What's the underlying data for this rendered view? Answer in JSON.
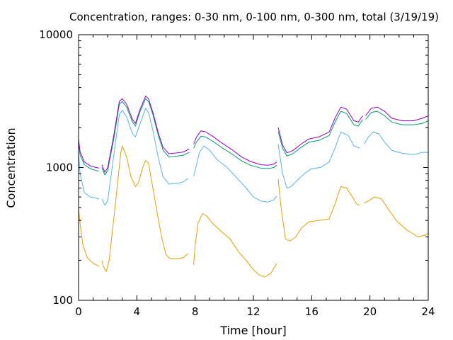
{
  "chart_data": {
    "type": "line",
    "title": "Concentration, ranges: 0-30 nm, 0-100 nm, 0-300 nm, total (3/19/19)",
    "xlabel": "Time [hour]",
    "ylabel": "Concentration",
    "xlim": [
      0,
      24
    ],
    "ylim": [
      100,
      10000
    ],
    "yscale": "log",
    "grid": false,
    "legend": "none",
    "x_ticks": [
      "0",
      "4",
      "8",
      "12",
      "16",
      "20",
      "24"
    ],
    "y_ticks": [
      "100",
      "1000",
      "10000"
    ],
    "x_tick_values": [
      0,
      4,
      8,
      12,
      16,
      20,
      24
    ],
    "y_tick_values": [
      100,
      1000,
      10000
    ],
    "series": [
      {
        "color": "#e69f00",
        "segments": [
          [
            [
              0,
              500
            ],
            [
              0.1,
              380
            ],
            [
              0.3,
              260
            ],
            [
              0.6,
              210
            ],
            [
              1.0,
              190
            ],
            [
              1.4,
              180
            ]
          ],
          [
            [
              1.6,
              200
            ],
            [
              1.7,
              180
            ],
            [
              1.9,
              165
            ],
            [
              2.1,
              200
            ],
            [
              2.5,
              500
            ],
            [
              2.9,
              1300
            ],
            [
              3.0,
              1450
            ],
            [
              3.3,
              1200
            ],
            [
              3.6,
              850
            ],
            [
              3.9,
              720
            ],
            [
              4.1,
              760
            ],
            [
              4.4,
              1000
            ],
            [
              4.6,
              1130
            ],
            [
              4.8,
              1080
            ],
            [
              5.1,
              700
            ],
            [
              5.4,
              450
            ],
            [
              5.7,
              300
            ],
            [
              6.0,
              220
            ],
            [
              6.3,
              205
            ],
            [
              6.8,
              205
            ],
            [
              7.2,
              210
            ],
            [
              7.5,
              225
            ]
          ],
          [
            [
              7.9,
              185
            ],
            [
              8.0,
              260
            ],
            [
              8.2,
              380
            ],
            [
              8.5,
              450
            ],
            [
              8.8,
              430
            ],
            [
              9.2,
              380
            ],
            [
              9.8,
              330
            ],
            [
              10.4,
              290
            ],
            [
              11.0,
              230
            ],
            [
              11.5,
              200
            ],
            [
              12.0,
              170
            ],
            [
              12.4,
              155
            ],
            [
              12.8,
              150
            ],
            [
              13.2,
              160
            ],
            [
              13.6,
              190
            ]
          ],
          [
            [
              13.7,
              820
            ],
            [
              13.9,
              500
            ],
            [
              14.2,
              290
            ],
            [
              14.5,
              280
            ],
            [
              14.9,
              300
            ],
            [
              15.3,
              350
            ],
            [
              15.8,
              390
            ],
            [
              16.5,
              400
            ],
            [
              17.2,
              410
            ],
            [
              17.6,
              530
            ],
            [
              18.0,
              720
            ],
            [
              18.4,
              700
            ],
            [
              18.8,
              600
            ],
            [
              19.1,
              530
            ],
            [
              19.3,
              520
            ]
          ],
          [
            [
              19.6,
              540
            ],
            [
              19.9,
              560
            ],
            [
              20.3,
              600
            ],
            [
              20.8,
              580
            ],
            [
              21.3,
              480
            ],
            [
              21.8,
              400
            ],
            [
              22.5,
              340
            ],
            [
              23.3,
              300
            ],
            [
              23.8,
              310
            ],
            [
              24.0,
              320
            ]
          ]
        ]
      },
      {
        "color": "#56b4e9",
        "segments": [
          [
            [
              0,
              1300
            ],
            [
              0.1,
              900
            ],
            [
              0.4,
              650
            ],
            [
              0.8,
              600
            ],
            [
              1.2,
              590
            ],
            [
              1.4,
              580
            ]
          ],
          [
            [
              1.6,
              580
            ],
            [
              1.8,
              520
            ],
            [
              2.0,
              560
            ],
            [
              2.4,
              1200
            ],
            [
              2.8,
              2500
            ],
            [
              3.0,
              2700
            ],
            [
              3.3,
              2400
            ],
            [
              3.7,
              1800
            ],
            [
              3.9,
              1700
            ],
            [
              4.2,
              2100
            ],
            [
              4.6,
              2800
            ],
            [
              4.8,
              2600
            ],
            [
              5.1,
              1900
            ],
            [
              5.5,
              1150
            ],
            [
              5.8,
              850
            ],
            [
              6.2,
              750
            ],
            [
              6.8,
              760
            ],
            [
              7.2,
              780
            ],
            [
              7.5,
              830
            ]
          ],
          [
            [
              7.9,
              860
            ],
            [
              8.1,
              1050
            ],
            [
              8.3,
              1300
            ],
            [
              8.6,
              1450
            ],
            [
              9.0,
              1350
            ],
            [
              9.5,
              1150
            ],
            [
              10.2,
              1000
            ],
            [
              10.8,
              850
            ],
            [
              11.5,
              700
            ],
            [
              12.0,
              600
            ],
            [
              12.5,
              560
            ],
            [
              13.0,
              550
            ],
            [
              13.4,
              570
            ],
            [
              13.6,
              610
            ]
          ],
          [
            [
              13.7,
              1500
            ],
            [
              14.0,
              900
            ],
            [
              14.3,
              700
            ],
            [
              14.6,
              720
            ],
            [
              15.0,
              800
            ],
            [
              15.5,
              900
            ],
            [
              16.0,
              980
            ],
            [
              16.6,
              1000
            ],
            [
              17.2,
              1100
            ],
            [
              17.6,
              1400
            ],
            [
              18.0,
              1850
            ],
            [
              18.5,
              1750
            ],
            [
              18.9,
              1450
            ],
            [
              19.3,
              1400
            ]
          ],
          [
            [
              19.6,
              1500
            ],
            [
              19.9,
              1700
            ],
            [
              20.2,
              1850
            ],
            [
              20.6,
              1800
            ],
            [
              21.0,
              1550
            ],
            [
              21.5,
              1350
            ],
            [
              22.2,
              1280
            ],
            [
              23.0,
              1250
            ],
            [
              23.6,
              1300
            ],
            [
              24.0,
              1300
            ]
          ]
        ]
      },
      {
        "color": "#009e73",
        "segments": [
          [
            [
              0,
              1550
            ],
            [
              0.1,
              1250
            ],
            [
              0.4,
              1050
            ],
            [
              0.8,
              980
            ],
            [
              1.2,
              950
            ],
            [
              1.4,
              940
            ]
          ],
          [
            [
              1.6,
              1000
            ],
            [
              1.8,
              880
            ],
            [
              2.0,
              950
            ],
            [
              2.4,
              1600
            ],
            [
              2.8,
              3000
            ],
            [
              3.0,
              3150
            ],
            [
              3.3,
              2850
            ],
            [
              3.7,
              2200
            ],
            [
              3.9,
              2050
            ],
            [
              4.2,
              2600
            ],
            [
              4.6,
              3300
            ],
            [
              4.8,
              3150
            ],
            [
              5.1,
              2500
            ],
            [
              5.5,
              1700
            ],
            [
              5.8,
              1350
            ],
            [
              6.2,
              1200
            ],
            [
              6.8,
              1220
            ],
            [
              7.2,
              1240
            ],
            [
              7.6,
              1300
            ]
          ],
          [
            [
              7.9,
              1400
            ],
            [
              8.1,
              1560
            ],
            [
              8.4,
              1720
            ],
            [
              8.7,
              1700
            ],
            [
              9.2,
              1580
            ],
            [
              9.8,
              1420
            ],
            [
              10.5,
              1270
            ],
            [
              11.2,
              1120
            ],
            [
              11.8,
              1040
            ],
            [
              12.5,
              990
            ],
            [
              13.0,
              980
            ],
            [
              13.4,
              1000
            ],
            [
              13.6,
              1040
            ]
          ],
          [
            [
              13.7,
              1870
            ],
            [
              14.0,
              1400
            ],
            [
              14.3,
              1220
            ],
            [
              14.7,
              1270
            ],
            [
              15.2,
              1400
            ],
            [
              15.8,
              1550
            ],
            [
              16.5,
              1600
            ],
            [
              17.2,
              1740
            ],
            [
              17.6,
              2200
            ],
            [
              18.0,
              2650
            ],
            [
              18.4,
              2550
            ],
            [
              18.9,
              2100
            ],
            [
              19.2,
              2050
            ],
            [
              19.5,
              2300
            ]
          ],
          [
            [
              19.7,
              2300
            ],
            [
              20.1,
              2600
            ],
            [
              20.5,
              2650
            ],
            [
              21.0,
              2450
            ],
            [
              21.5,
              2200
            ],
            [
              22.2,
              2100
            ],
            [
              23.0,
              2100
            ],
            [
              23.6,
              2150
            ],
            [
              24.0,
              2250
            ]
          ]
        ]
      },
      {
        "color": "#9400d3",
        "segments": [
          [
            [
              0,
              1650
            ],
            [
              0.1,
              1320
            ],
            [
              0.4,
              1100
            ],
            [
              0.8,
              1030
            ],
            [
              1.2,
              1000
            ],
            [
              1.4,
              990
            ]
          ],
          [
            [
              1.6,
              1050
            ],
            [
              1.8,
              920
            ],
            [
              2.0,
              1000
            ],
            [
              2.4,
              1700
            ],
            [
              2.8,
              3150
            ],
            [
              3.0,
              3300
            ],
            [
              3.3,
              3000
            ],
            [
              3.7,
              2300
            ],
            [
              3.9,
              2150
            ],
            [
              4.2,
              2700
            ],
            [
              4.6,
              3450
            ],
            [
              4.8,
              3300
            ],
            [
              5.1,
              2600
            ],
            [
              5.5,
              1780
            ],
            [
              5.8,
              1420
            ],
            [
              6.2,
              1270
            ],
            [
              6.8,
              1290
            ],
            [
              7.2,
              1310
            ],
            [
              7.6,
              1380
            ]
          ],
          [
            [
              7.9,
              1500
            ],
            [
              8.1,
              1700
            ],
            [
              8.4,
              1890
            ],
            [
              8.7,
              1860
            ],
            [
              9.2,
              1720
            ],
            [
              9.8,
              1540
            ],
            [
              10.5,
              1370
            ],
            [
              11.2,
              1200
            ],
            [
              11.8,
              1110
            ],
            [
              12.5,
              1050
            ],
            [
              13.0,
              1040
            ],
            [
              13.4,
              1060
            ],
            [
              13.6,
              1100
            ]
          ],
          [
            [
              13.7,
              2000
            ],
            [
              14.0,
              1480
            ],
            [
              14.3,
              1290
            ],
            [
              14.7,
              1340
            ],
            [
              15.2,
              1480
            ],
            [
              15.8,
              1640
            ],
            [
              16.5,
              1700
            ],
            [
              17.2,
              1850
            ],
            [
              17.6,
              2350
            ],
            [
              18.0,
              2850
            ],
            [
              18.4,
              2750
            ],
            [
              18.9,
              2250
            ],
            [
              19.2,
              2200
            ],
            [
              19.5,
              2450
            ]
          ],
          [
            [
              19.7,
              2450
            ],
            [
              20.1,
              2800
            ],
            [
              20.5,
              2850
            ],
            [
              21.0,
              2650
            ],
            [
              21.5,
              2350
            ],
            [
              22.2,
              2250
            ],
            [
              23.0,
              2250
            ],
            [
              23.6,
              2350
            ],
            [
              24.0,
              2450
            ]
          ]
        ]
      }
    ]
  }
}
